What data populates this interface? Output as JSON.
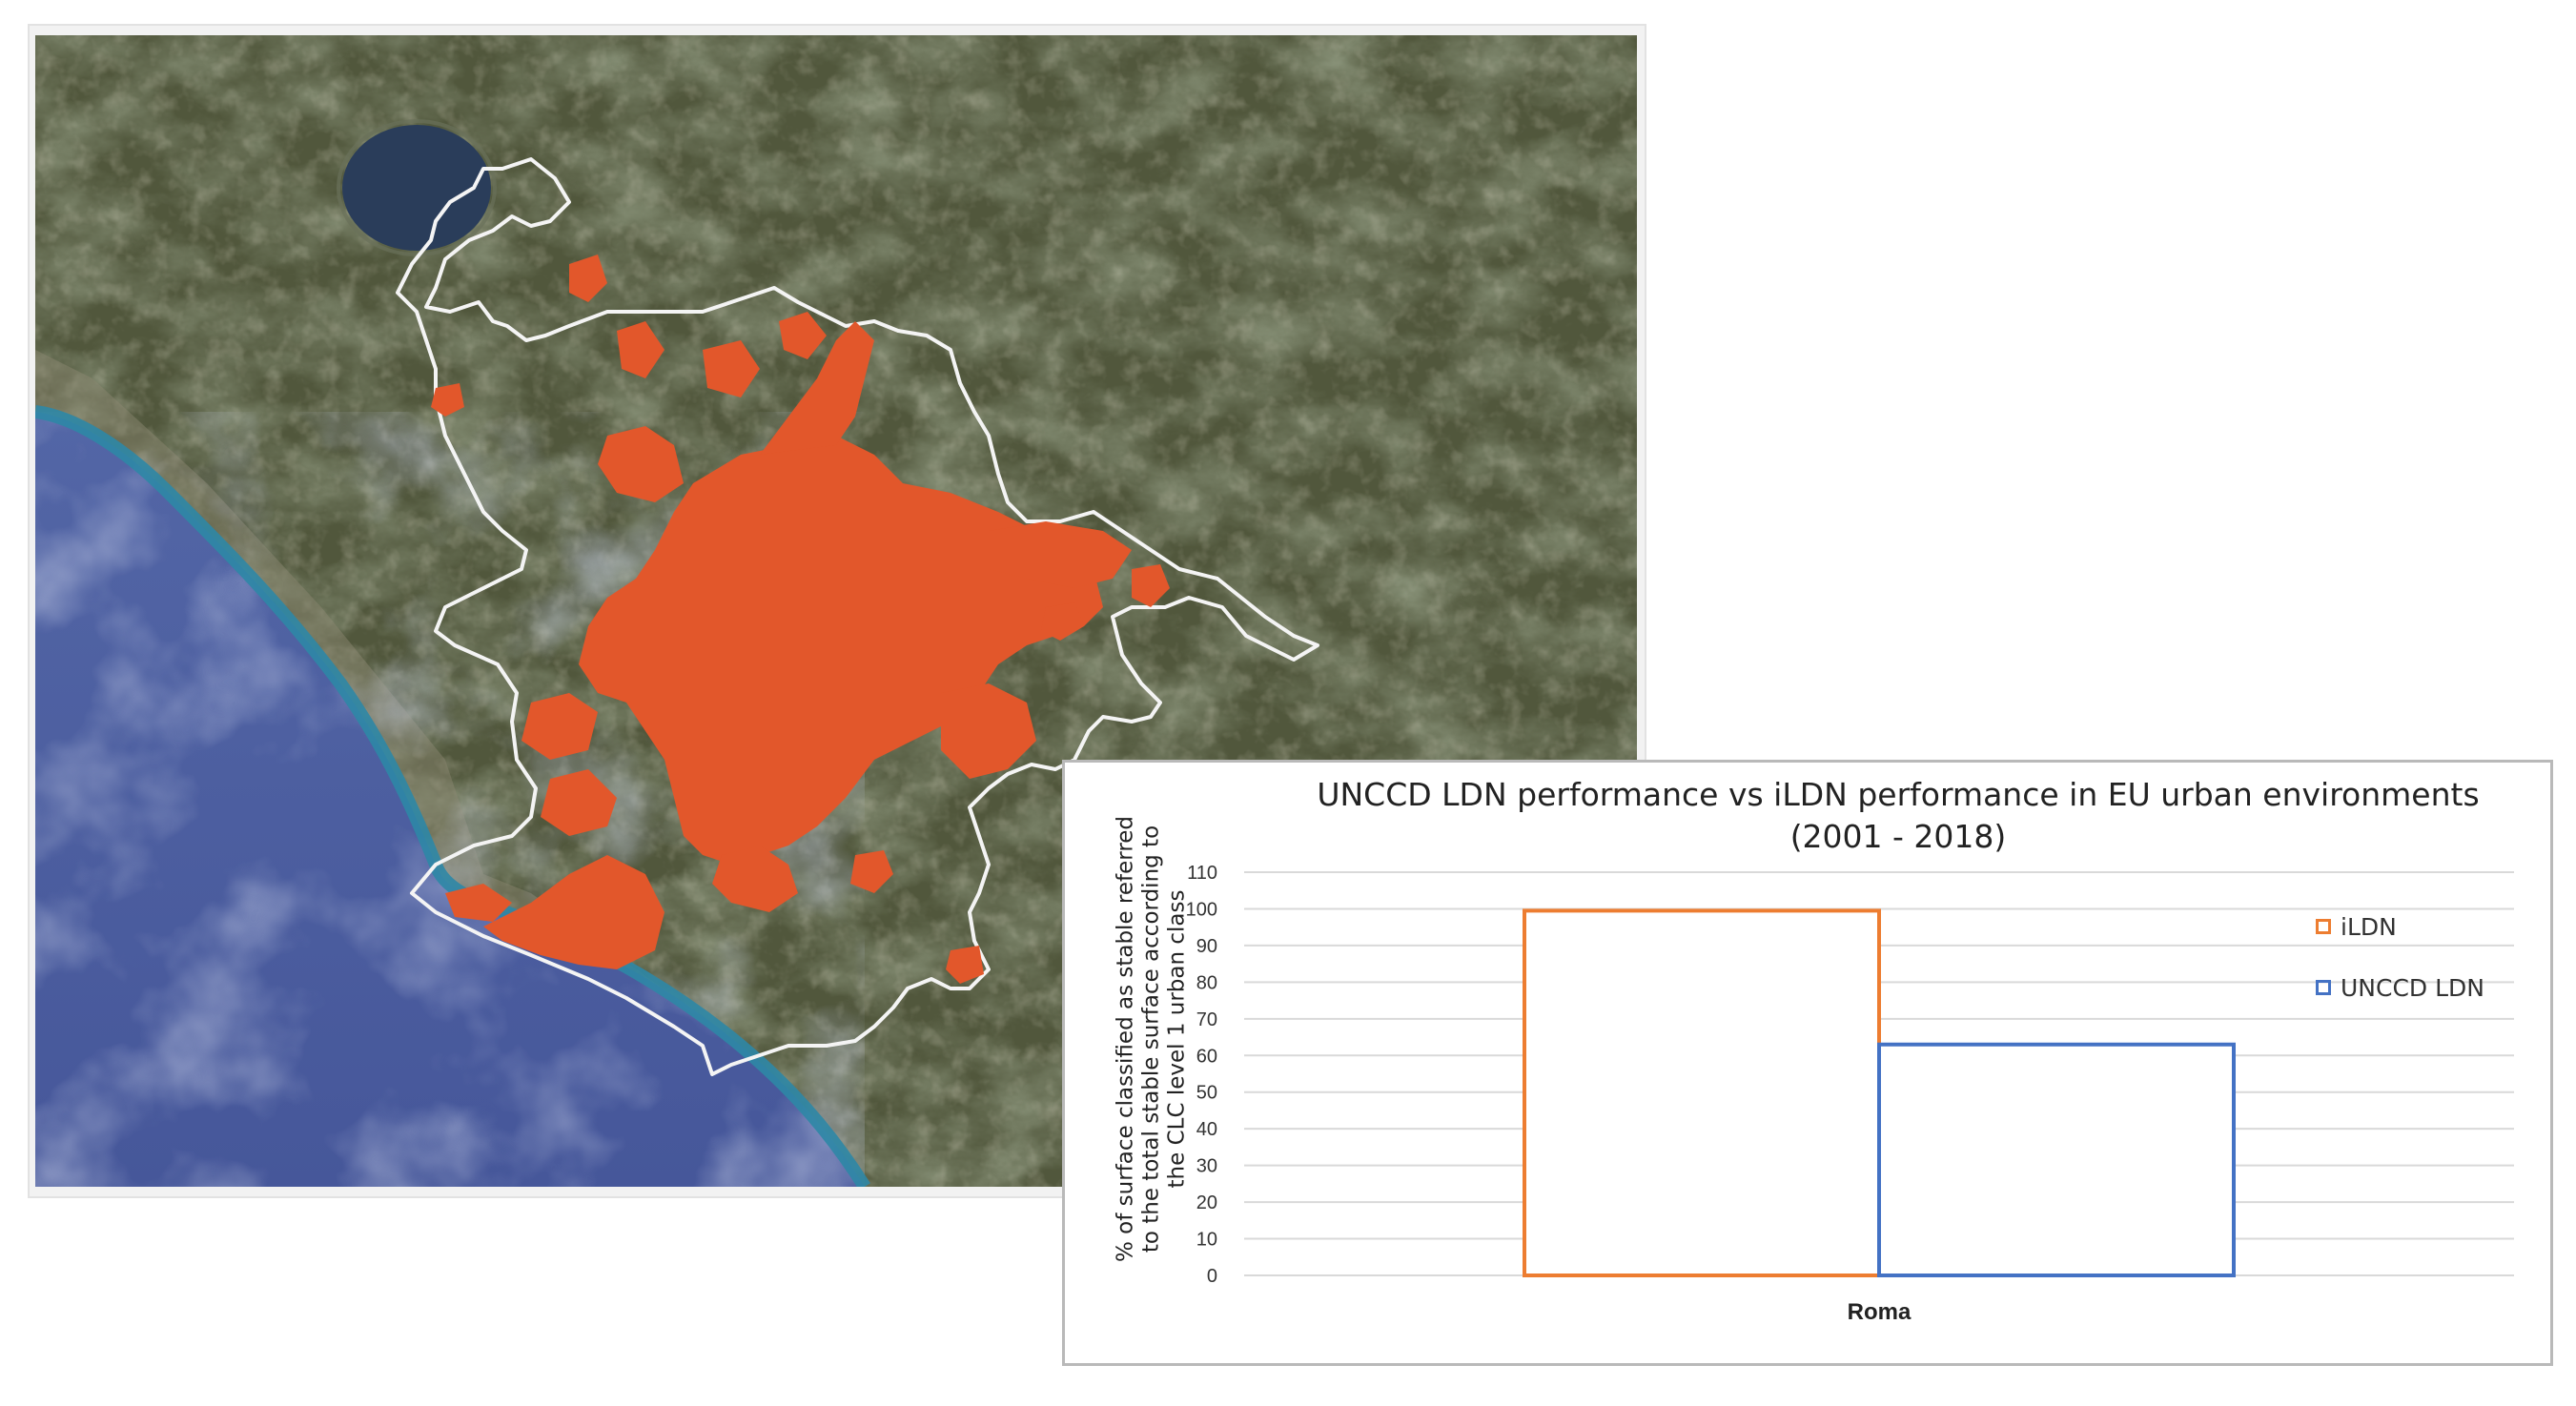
{
  "colors": {
    "sea": "#4d5f9e",
    "coast": "#2e87a6",
    "lake": "#2a3d5a",
    "land": "#51573c",
    "urban": "#e2572b",
    "boundary": "#f4f4f4",
    "ildn": "#ed7d31",
    "unccd_ldn": "#4472c4",
    "grid": "#d9d9d9"
  },
  "map": {
    "layer_names": [
      "satellite-imagery",
      "urban-area-overlay",
      "municipality-boundary"
    ]
  },
  "chart_data": {
    "type": "bar",
    "title_lines": [
      "UNCCD LDN performance vs iLDN performance in EU urban environments",
      "(2001 - 2018)"
    ],
    "ylabel": "% of surface classified as stable referred to the total stable surface according to the CLC level 1 urban class",
    "xlabel": "",
    "categories": [
      "Roma"
    ],
    "series": [
      {
        "name": "iLDN",
        "values": [
          99.5
        ]
      },
      {
        "name": "UNCCD LDN",
        "values": [
          63
        ]
      }
    ],
    "ylim": [
      0,
      110
    ],
    "yticks": [
      "0",
      "10",
      "20",
      "30",
      "40",
      "50",
      "60",
      "70",
      "80",
      "90",
      "100",
      "110"
    ],
    "grid": true,
    "legend_position": "right",
    "bar_style": "outline"
  }
}
